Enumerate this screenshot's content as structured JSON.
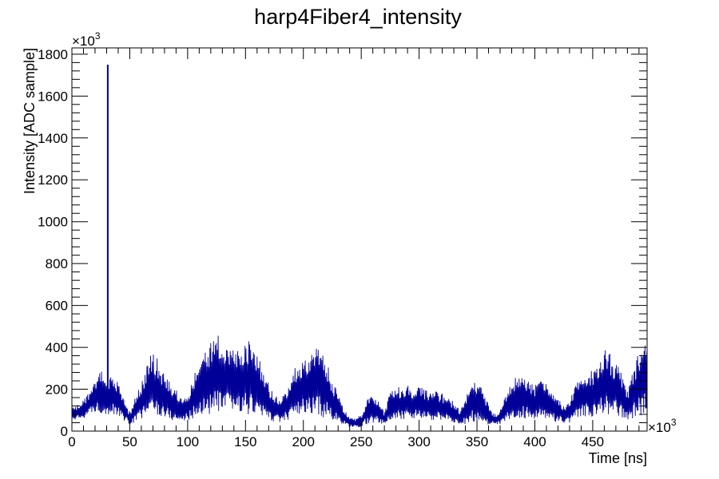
{
  "chart_data": {
    "type": "line",
    "title": "harp4Fiber4_intensity",
    "xlabel": "Time [ns]",
    "ylabel": "Intensity [ADC sample]",
    "x_multiplier": "×10",
    "y_multiplier": "×10",
    "multiplier_exponent": "3",
    "xlim": [
      0,
      497
    ],
    "ylim": [
      0,
      1830
    ],
    "x_ticks": [
      0,
      50,
      100,
      150,
      200,
      250,
      300,
      350,
      400,
      450
    ],
    "x_tick_labels": [
      "0",
      "50",
      "100",
      "150",
      "200",
      "250",
      "300",
      "350",
      "400",
      "450"
    ],
    "y_ticks": [
      0,
      200,
      400,
      600,
      800,
      1000,
      1200,
      1400,
      1600,
      1800
    ],
    "y_tick_labels": [
      "0",
      "200",
      "400",
      "600",
      "800",
      "1000",
      "1200",
      "1400",
      "1600",
      "1800"
    ],
    "grid": false,
    "legend": "none",
    "series_color": "#000099",
    "spike": {
      "x": 31,
      "y": 1750
    },
    "envelope_upper": [
      [
        0,
        110
      ],
      [
        10,
        150
      ],
      [
        20,
        240
      ],
      [
        25,
        300
      ],
      [
        30,
        220
      ],
      [
        35,
        280
      ],
      [
        40,
        230
      ],
      [
        45,
        150
      ],
      [
        50,
        90
      ],
      [
        55,
        170
      ],
      [
        60,
        230
      ],
      [
        65,
        320
      ],
      [
        70,
        390
      ],
      [
        75,
        330
      ],
      [
        80,
        280
      ],
      [
        85,
        250
      ],
      [
        90,
        200
      ],
      [
        95,
        160
      ],
      [
        100,
        180
      ],
      [
        105,
        260
      ],
      [
        110,
        330
      ],
      [
        115,
        400
      ],
      [
        120,
        440
      ],
      [
        125,
        480
      ],
      [
        130,
        440
      ],
      [
        135,
        420
      ],
      [
        140,
        410
      ],
      [
        145,
        400
      ],
      [
        150,
        450
      ],
      [
        155,
        420
      ],
      [
        160,
        370
      ],
      [
        165,
        300
      ],
      [
        170,
        230
      ],
      [
        175,
        170
      ],
      [
        180,
        160
      ],
      [
        185,
        200
      ],
      [
        190,
        270
      ],
      [
        195,
        330
      ],
      [
        200,
        360
      ],
      [
        205,
        380
      ],
      [
        210,
        400
      ],
      [
        215,
        390
      ],
      [
        220,
        330
      ],
      [
        225,
        250
      ],
      [
        230,
        180
      ],
      [
        235,
        110
      ],
      [
        240,
        70
      ],
      [
        245,
        60
      ],
      [
        250,
        80
      ],
      [
        255,
        160
      ],
      [
        260,
        190
      ],
      [
        265,
        150
      ],
      [
        270,
        90
      ],
      [
        275,
        200
      ],
      [
        280,
        230
      ],
      [
        285,
        200
      ],
      [
        290,
        220
      ],
      [
        295,
        200
      ],
      [
        300,
        230
      ],
      [
        305,
        200
      ],
      [
        310,
        180
      ],
      [
        315,
        190
      ],
      [
        320,
        180
      ],
      [
        325,
        160
      ],
      [
        330,
        140
      ],
      [
        335,
        100
      ],
      [
        340,
        160
      ],
      [
        345,
        230
      ],
      [
        350,
        240
      ],
      [
        355,
        200
      ],
      [
        360,
        130
      ],
      [
        365,
        80
      ],
      [
        370,
        100
      ],
      [
        375,
        180
      ],
      [
        380,
        240
      ],
      [
        385,
        280
      ],
      [
        390,
        260
      ],
      [
        395,
        250
      ],
      [
        400,
        220
      ],
      [
        405,
        250
      ],
      [
        410,
        240
      ],
      [
        415,
        200
      ],
      [
        420,
        160
      ],
      [
        425,
        120
      ],
      [
        430,
        160
      ],
      [
        435,
        220
      ],
      [
        440,
        280
      ],
      [
        445,
        300
      ],
      [
        450,
        290
      ],
      [
        455,
        320
      ],
      [
        460,
        390
      ],
      [
        465,
        370
      ],
      [
        470,
        330
      ],
      [
        475,
        280
      ],
      [
        480,
        200
      ],
      [
        485,
        300
      ],
      [
        490,
        380
      ],
      [
        495,
        420
      ],
      [
        497,
        400
      ]
    ],
    "envelope_lower": [
      [
        0,
        50
      ],
      [
        10,
        60
      ],
      [
        20,
        90
      ],
      [
        30,
        80
      ],
      [
        40,
        70
      ],
      [
        50,
        30
      ],
      [
        60,
        60
      ],
      [
        70,
        80
      ],
      [
        80,
        60
      ],
      [
        90,
        40
      ],
      [
        100,
        50
      ],
      [
        110,
        70
      ],
      [
        120,
        80
      ],
      [
        130,
        80
      ],
      [
        140,
        90
      ],
      [
        150,
        80
      ],
      [
        160,
        70
      ],
      [
        170,
        50
      ],
      [
        180,
        40
      ],
      [
        190,
        60
      ],
      [
        200,
        70
      ],
      [
        210,
        80
      ],
      [
        220,
        60
      ],
      [
        230,
        40
      ],
      [
        240,
        15
      ],
      [
        250,
        20
      ],
      [
        260,
        40
      ],
      [
        270,
        30
      ],
      [
        280,
        50
      ],
      [
        290,
        60
      ],
      [
        300,
        60
      ],
      [
        310,
        50
      ],
      [
        320,
        50
      ],
      [
        330,
        40
      ],
      [
        340,
        30
      ],
      [
        350,
        50
      ],
      [
        360,
        30
      ],
      [
        370,
        30
      ],
      [
        380,
        50
      ],
      [
        390,
        60
      ],
      [
        400,
        60
      ],
      [
        410,
        60
      ],
      [
        420,
        40
      ],
      [
        430,
        40
      ],
      [
        440,
        60
      ],
      [
        450,
        70
      ],
      [
        460,
        80
      ],
      [
        470,
        70
      ],
      [
        480,
        50
      ],
      [
        490,
        70
      ],
      [
        497,
        80
      ]
    ]
  }
}
